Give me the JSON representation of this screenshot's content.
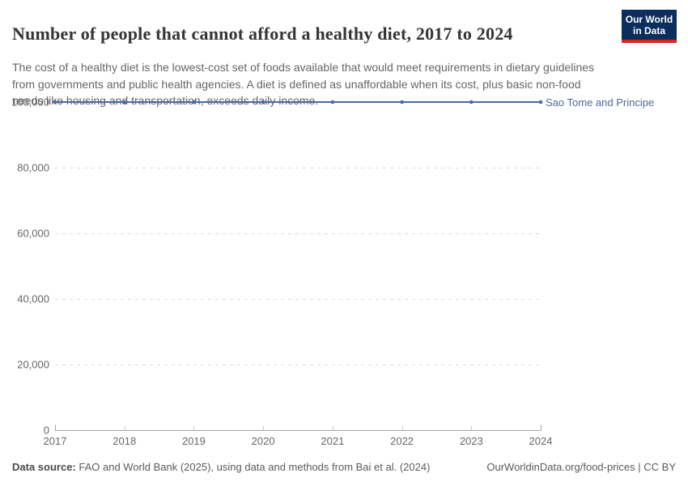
{
  "header": {
    "title": "Number of people that cannot afford a healthy diet, 2017 to 2024",
    "subtitle": "The cost of a healthy diet is the lowest-cost set of foods available that would meet requirements in dietary guidelines from governments and public health agencies. A diet is defined as unaffordable when its cost, plus basic non-food needs like housing and transportation, exceeds daily income.",
    "logo": {
      "line1": "Our World",
      "line2": "in Data"
    }
  },
  "chart_data": {
    "type": "line",
    "title": "Number of people that cannot afford a healthy diet, 2017 to 2024",
    "x": [
      2017,
      2018,
      2019,
      2020,
      2021,
      2022,
      2023,
      2024
    ],
    "series": [
      {
        "name": "Sao Tome and Principe",
        "values": [
          100000,
          100000,
          100000,
          100000,
          100000,
          100000,
          100000,
          100000
        ],
        "color": "#4c6a9c"
      }
    ],
    "ylim": [
      0,
      100000
    ],
    "yticks": [
      {
        "value": 0,
        "label": "0"
      },
      {
        "value": 20000,
        "label": "20,000"
      },
      {
        "value": 40000,
        "label": "40,000"
      },
      {
        "value": 60000,
        "label": "60,000"
      },
      {
        "value": 80000,
        "label": "80,000"
      },
      {
        "value": 100000,
        "label": "100,000"
      }
    ],
    "grid": "horizontal-dashed",
    "legend_position": "end-of-line-right",
    "marker": "circle"
  },
  "colors": {
    "line": "#4c6a9c",
    "gridline": "#dcdcdc",
    "axis": "#a5a5a5",
    "tick": "#c4c4c4",
    "tick_label": "#666666",
    "logo_bg": "#0b2e5d",
    "logo_bar": "#d42a20"
  },
  "footer": {
    "source_label": "Data source:",
    "source_text": " FAO and World Bank (2025), using data and methods from Bai et al. (2024)",
    "right_text": "OurWorldinData.org/food-prices | CC BY"
  }
}
